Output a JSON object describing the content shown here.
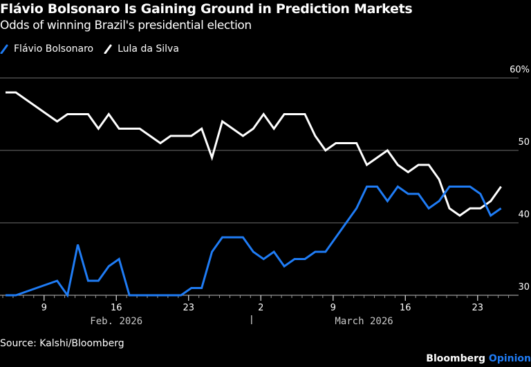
{
  "header": {
    "title": "Flávio Bolsonaro Is Gaining Ground in Prediction Markets",
    "subtitle": "Odds of winning Brazil's presidential election"
  },
  "footer": {
    "source": "Source: Kalshi/Bloomberg",
    "brand_main": "Bloomberg",
    "brand_accent": "Opinion"
  },
  "colors": {
    "flavio": "#1f7cf5",
    "lula": "#ffffff",
    "grid": "#5a5a5a",
    "background": "#000000"
  },
  "chart_data": {
    "type": "line",
    "title": "Flávio Bolsonaro Is Gaining Ground in Prediction Markets",
    "subtitle": "Odds of winning Brazil's presidential election",
    "xlabel": "",
    "ylabel": "",
    "ylim": [
      30,
      60
    ],
    "y_ticks": [
      30,
      40,
      50,
      60
    ],
    "y_tick_labels": [
      "30",
      "40",
      "50",
      "60%"
    ],
    "y_axis_side": "right",
    "grid": true,
    "legend_position": "top-left",
    "x_start": "2026-02-05",
    "x_end": "2026-03-25",
    "x_major_ticks": [
      {
        "date": "2026-02-09",
        "label": "9"
      },
      {
        "date": "2026-02-16",
        "label": "16"
      },
      {
        "date": "2026-02-23",
        "label": "23"
      },
      {
        "date": "2026-03-02",
        "label": "2"
      },
      {
        "date": "2026-03-09",
        "label": "9"
      },
      {
        "date": "2026-03-16",
        "label": "16"
      },
      {
        "date": "2026-03-23",
        "label": "23"
      }
    ],
    "month_labels": [
      {
        "label": "Feb. 2026",
        "center_date": "2026-02-16"
      },
      {
        "label": "March 2026",
        "center_date": "2026-03-12"
      }
    ],
    "month_separator_date": "2026-03-01",
    "x": [
      "Feb 5",
      "Feb 6",
      "Feb 7",
      "Feb 8",
      "Feb 9",
      "Feb 10",
      "Feb 11",
      "Feb 12",
      "Feb 13",
      "Feb 14",
      "Feb 15",
      "Feb 16",
      "Feb 17",
      "Feb 18",
      "Feb 19",
      "Feb 20",
      "Feb 21",
      "Feb 22",
      "Feb 23",
      "Feb 24",
      "Feb 25",
      "Feb 26",
      "Feb 27",
      "Feb 28",
      "Mar 1",
      "Mar 2",
      "Mar 3",
      "Mar 4",
      "Mar 5",
      "Mar 6",
      "Mar 7",
      "Mar 8",
      "Mar 9",
      "Mar 10",
      "Mar 11",
      "Mar 12",
      "Mar 13",
      "Mar 14",
      "Mar 15",
      "Mar 16",
      "Mar 17",
      "Mar 18",
      "Mar 19",
      "Mar 20",
      "Mar 21",
      "Mar 22",
      "Mar 23",
      "Mar 24",
      "Mar 25"
    ],
    "series": [
      {
        "name": "Flávio Bolsonaro",
        "color": "#1f7cf5",
        "values": [
          30,
          30,
          30.5,
          31,
          31.5,
          32,
          30,
          37,
          32,
          32,
          34,
          35,
          30,
          30,
          30,
          30,
          30,
          30,
          31,
          31,
          36,
          38,
          38,
          38,
          36,
          35,
          36,
          34,
          35,
          35,
          36,
          36,
          38,
          40,
          42,
          45,
          45,
          43,
          45,
          44,
          44,
          42,
          43,
          45,
          45,
          45,
          44,
          41,
          42
        ]
      },
      {
        "name": "Lula da Silva",
        "color": "#ffffff",
        "values": [
          58,
          58,
          57,
          56,
          55,
          54,
          55,
          55,
          55,
          53,
          55,
          53,
          53,
          53,
          52,
          51,
          52,
          52,
          52,
          53,
          49,
          54,
          53,
          52,
          53,
          55,
          53,
          55,
          55,
          55,
          52,
          50,
          51,
          51,
          51,
          48,
          49,
          50,
          48,
          47,
          48,
          48,
          46,
          42,
          41,
          42,
          42,
          43,
          45
        ]
      }
    ]
  }
}
